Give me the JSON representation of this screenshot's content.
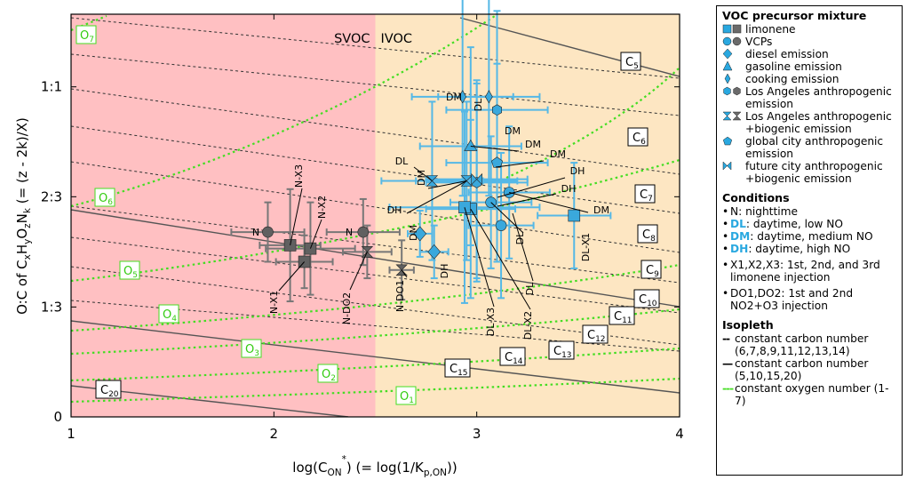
{
  "chart_data": {
    "type": "scatter",
    "title": "",
    "xlabel": "log(C_ON*) (= log(1/K_p,ON))",
    "ylabel": "O:C of CxHyOzNk (= (z - 2k)/X)",
    "xlim": [
      1.0,
      4.0
    ],
    "ylim": [
      0.0,
      1.22
    ],
    "xticks": [
      "1",
      "2",
      "3",
      "4"
    ],
    "yticks": [
      "0",
      "1:3",
      "2:3",
      "1:1"
    ],
    "ytick_values": [
      0,
      0.333,
      0.667,
      1.0
    ],
    "regions": [
      {
        "label": "SVOC",
        "x_from": 1.0,
        "x_to": 2.5,
        "color": "#ffc0c2"
      },
      {
        "label": "IVOC",
        "x_from": 2.5,
        "x_to": 4.0,
        "color": "#fde6c2"
      }
    ],
    "series": [
      {
        "name": "limonene",
        "marker": "square",
        "points": [
          {
            "label": "N-X1",
            "x": 2.15,
            "y": 0.47,
            "xerr": 0.14,
            "yerr": 0.08,
            "cond": "N"
          },
          {
            "label": "N-X2",
            "x": 2.18,
            "y": 0.51,
            "xerr": 0.22,
            "yerr": 0.14,
            "cond": "N"
          },
          {
            "label": "N-X3",
            "x": 2.08,
            "y": 0.52,
            "xerr": 0.15,
            "yerr": 0.17,
            "cond": "N"
          },
          {
            "label": "DL-X1",
            "x": 3.48,
            "y": 0.61,
            "xerr": 0.18,
            "yerr": 0.16,
            "cond": "DL"
          },
          {
            "label": "DL-X2",
            "x": 2.97,
            "y": 0.63,
            "xerr": 0.22,
            "yerr": 0.27,
            "cond": "DL"
          },
          {
            "label": "DL-X3",
            "x": 2.94,
            "y": 0.635,
            "xerr": 0.37,
            "yerr": 0.29,
            "cond": "DL"
          }
        ]
      },
      {
        "name": "VCPs",
        "marker": "circle",
        "points": [
          {
            "label": "N",
            "x": 1.97,
            "y": 0.56,
            "xerr": 0.18,
            "yerr": 0.09,
            "cond": "N"
          },
          {
            "label": "N",
            "x": 2.44,
            "y": 0.56,
            "xerr": 0.18,
            "yerr": 0.1,
            "cond": "N"
          },
          {
            "label": "DL",
            "x": 3.12,
            "y": 0.58,
            "xerr": 0.16,
            "yerr": 0.22,
            "cond": "DL"
          },
          {
            "label": "DL",
            "x": 3.07,
            "y": 0.65,
            "xerr": 0.2,
            "yerr": 0.2,
            "cond": "DL"
          },
          {
            "label": "DH",
            "x": 3.16,
            "y": 0.68,
            "xerr": 0.2,
            "yerr": 0.2,
            "cond": "DH"
          }
        ]
      },
      {
        "name": "diesel emission",
        "marker": "diamond",
        "points": [
          {
            "label": "DM",
            "x": 2.72,
            "y": 0.555,
            "xerr": 0.06,
            "yerr": 0.07,
            "cond": "DM"
          },
          {
            "label": "DH",
            "x": 2.79,
            "y": 0.5,
            "xerr": 0.07,
            "yerr": 0.08,
            "cond": "DH"
          }
        ]
      },
      {
        "name": "gasoline emission",
        "marker": "triangle",
        "points": [
          {
            "label": "DM",
            "x": 2.97,
            "y": 0.82,
            "xerr": 0.25,
            "yerr": 0.3,
            "cond": "DM"
          }
        ]
      },
      {
        "name": "cooking emission",
        "marker": "thin-diamond",
        "points": [
          {
            "label": "DM",
            "x": 2.93,
            "y": 0.97,
            "xerr": 0.25,
            "yerr": 0.3,
            "cond": "DM"
          },
          {
            "label": "DL",
            "x": 3.06,
            "y": 0.97,
            "xerr": 0.25,
            "yerr": 0.3,
            "cond": "DL"
          }
        ]
      },
      {
        "name": "Los Angeles anthropogenic emission",
        "marker": "hexagon",
        "points": [
          {
            "label": "DM",
            "x": 3.1,
            "y": 0.93,
            "xerr": 0.25,
            "yerr": 0.3,
            "cond": "DM"
          },
          {
            "label": "DH",
            "x": 3.0,
            "y": 0.71,
            "xerr": 0.25,
            "yerr": 0.3,
            "cond": "DH"
          }
        ]
      },
      {
        "name": "Los Angeles anthropogenic +biogenic emission",
        "marker": "hourglass",
        "points": [
          {
            "label": "N-DO2",
            "x": 2.46,
            "y": 0.5,
            "xerr": 0.12,
            "yerr": 0.08,
            "cond": "N"
          },
          {
            "label": "N-DO1",
            "x": 2.63,
            "y": 0.445,
            "xerr": 0.06,
            "yerr": 0.09,
            "cond": "N"
          },
          {
            "label": "DL",
            "x": 2.78,
            "y": 0.715,
            "xerr": 0.25,
            "yerr": 0.24,
            "cond": "DL"
          },
          {
            "label": "DM",
            "x": 2.95,
            "y": 0.715,
            "xerr": 0.25,
            "yerr": 0.24,
            "cond": "DM"
          }
        ]
      },
      {
        "name": "global city anthropogenic emission",
        "marker": "pentagon",
        "points": [
          {
            "label": "DM",
            "x": 3.1,
            "y": 0.77,
            "xerr": 0.25,
            "yerr": 0.3,
            "cond": "DM"
          }
        ]
      },
      {
        "name": "future city anthropogenic +biogenic emission",
        "marker": "bowtie",
        "points": [
          {
            "label": "DH",
            "x": 3.0,
            "y": 0.72,
            "xerr": 0.25,
            "yerr": 0.3,
            "cond": "DH"
          }
        ]
      }
    ],
    "isopleths": {
      "carbon_dashed": [
        "C6",
        "C7",
        "C8",
        "C9",
        "C11",
        "C12",
        "C13",
        "C14"
      ],
      "carbon_solid": [
        "C5",
        "C10",
        "C15",
        "C20"
      ],
      "oxygen": [
        "O1",
        "O2",
        "O3",
        "O4",
        "O5",
        "O6",
        "O7"
      ]
    },
    "grid": false
  },
  "legend": {
    "precursor_title": "VOC precursor mixture",
    "precursors": [
      {
        "icon": "square-pair",
        "label": "limonene"
      },
      {
        "icon": "circle-pair",
        "label": "VCPs"
      },
      {
        "icon": "diamond",
        "label": "diesel emission"
      },
      {
        "icon": "triangle",
        "label": "gasoline emission"
      },
      {
        "icon": "thin-diamond",
        "label": "cooking emission"
      },
      {
        "icon": "hexagon-pair",
        "label": "Los Angeles anthropogenic emission"
      },
      {
        "icon": "hourglass-pair",
        "label": "Los Angeles anthropogenic +biogenic emission"
      },
      {
        "icon": "pentagon",
        "label": "global city anthropogenic emission"
      },
      {
        "icon": "bowtie",
        "label": "future city anthropogenic +biogenic emission"
      }
    ],
    "conditions_title": "Conditions",
    "conditions": [
      {
        "code": "N",
        "desc": ": nighttime",
        "colored": false
      },
      {
        "code": "DL",
        "desc": ": daytime, low NO",
        "colored": true
      },
      {
        "code": "DM",
        "desc": ": daytime, medium NO",
        "colored": true
      },
      {
        "code": "DH",
        "desc": ": daytime, high NO",
        "colored": true
      }
    ],
    "injections": [
      "X1,X2,X3: 1st, 2nd, and 3rd limonene injection",
      "DO1,DO2: 1st and 2nd NO2+O3 injection"
    ],
    "isopleth_title": "Isopleth",
    "isopleths": [
      {
        "style": "--",
        "label": "constant carbon number (6,7,8,9,11,12,13,14)"
      },
      {
        "style": "—",
        "label": "constant carbon number (5,10,15,20)"
      },
      {
        "style": "---",
        "label": "constant oxygen number (1-7)"
      }
    ]
  },
  "colors": {
    "svoc": "#ffc0c2",
    "ivoc": "#fde6c2",
    "blue": "#3aa8dc",
    "gray": "#606060",
    "green": "#44dd22"
  }
}
